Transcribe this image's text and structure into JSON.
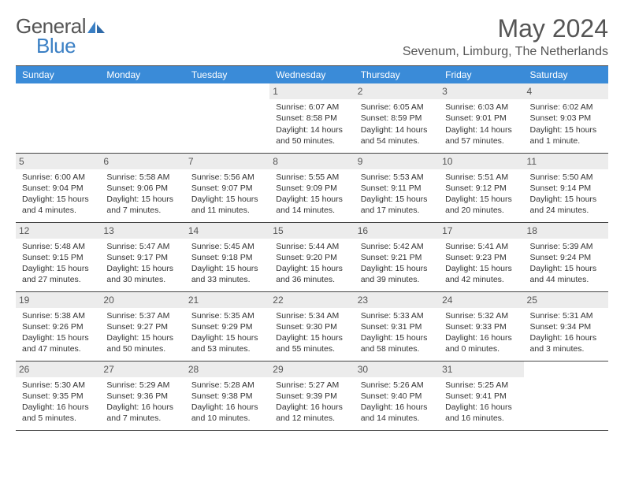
{
  "logo": {
    "part1": "General",
    "part2": "Blue"
  },
  "title": "May 2024",
  "location": "Sevenum, Limburg, The Netherlands",
  "colors": {
    "header_bg": "#3a8bd8",
    "accent": "#3a7fc4",
    "text": "#333333",
    "daybg": "#ececec"
  },
  "weekdays": [
    "Sunday",
    "Monday",
    "Tuesday",
    "Wednesday",
    "Thursday",
    "Friday",
    "Saturday"
  ],
  "weeks": [
    [
      null,
      null,
      null,
      {
        "n": "1",
        "sr": "Sunrise: 6:07 AM",
        "ss": "Sunset: 8:58 PM",
        "dl1": "Daylight: 14 hours",
        "dl2": "and 50 minutes."
      },
      {
        "n": "2",
        "sr": "Sunrise: 6:05 AM",
        "ss": "Sunset: 8:59 PM",
        "dl1": "Daylight: 14 hours",
        "dl2": "and 54 minutes."
      },
      {
        "n": "3",
        "sr": "Sunrise: 6:03 AM",
        "ss": "Sunset: 9:01 PM",
        "dl1": "Daylight: 14 hours",
        "dl2": "and 57 minutes."
      },
      {
        "n": "4",
        "sr": "Sunrise: 6:02 AM",
        "ss": "Sunset: 9:03 PM",
        "dl1": "Daylight: 15 hours",
        "dl2": "and 1 minute."
      }
    ],
    [
      {
        "n": "5",
        "sr": "Sunrise: 6:00 AM",
        "ss": "Sunset: 9:04 PM",
        "dl1": "Daylight: 15 hours",
        "dl2": "and 4 minutes."
      },
      {
        "n": "6",
        "sr": "Sunrise: 5:58 AM",
        "ss": "Sunset: 9:06 PM",
        "dl1": "Daylight: 15 hours",
        "dl2": "and 7 minutes."
      },
      {
        "n": "7",
        "sr": "Sunrise: 5:56 AM",
        "ss": "Sunset: 9:07 PM",
        "dl1": "Daylight: 15 hours",
        "dl2": "and 11 minutes."
      },
      {
        "n": "8",
        "sr": "Sunrise: 5:55 AM",
        "ss": "Sunset: 9:09 PM",
        "dl1": "Daylight: 15 hours",
        "dl2": "and 14 minutes."
      },
      {
        "n": "9",
        "sr": "Sunrise: 5:53 AM",
        "ss": "Sunset: 9:11 PM",
        "dl1": "Daylight: 15 hours",
        "dl2": "and 17 minutes."
      },
      {
        "n": "10",
        "sr": "Sunrise: 5:51 AM",
        "ss": "Sunset: 9:12 PM",
        "dl1": "Daylight: 15 hours",
        "dl2": "and 20 minutes."
      },
      {
        "n": "11",
        "sr": "Sunrise: 5:50 AM",
        "ss": "Sunset: 9:14 PM",
        "dl1": "Daylight: 15 hours",
        "dl2": "and 24 minutes."
      }
    ],
    [
      {
        "n": "12",
        "sr": "Sunrise: 5:48 AM",
        "ss": "Sunset: 9:15 PM",
        "dl1": "Daylight: 15 hours",
        "dl2": "and 27 minutes."
      },
      {
        "n": "13",
        "sr": "Sunrise: 5:47 AM",
        "ss": "Sunset: 9:17 PM",
        "dl1": "Daylight: 15 hours",
        "dl2": "and 30 minutes."
      },
      {
        "n": "14",
        "sr": "Sunrise: 5:45 AM",
        "ss": "Sunset: 9:18 PM",
        "dl1": "Daylight: 15 hours",
        "dl2": "and 33 minutes."
      },
      {
        "n": "15",
        "sr": "Sunrise: 5:44 AM",
        "ss": "Sunset: 9:20 PM",
        "dl1": "Daylight: 15 hours",
        "dl2": "and 36 minutes."
      },
      {
        "n": "16",
        "sr": "Sunrise: 5:42 AM",
        "ss": "Sunset: 9:21 PM",
        "dl1": "Daylight: 15 hours",
        "dl2": "and 39 minutes."
      },
      {
        "n": "17",
        "sr": "Sunrise: 5:41 AM",
        "ss": "Sunset: 9:23 PM",
        "dl1": "Daylight: 15 hours",
        "dl2": "and 42 minutes."
      },
      {
        "n": "18",
        "sr": "Sunrise: 5:39 AM",
        "ss": "Sunset: 9:24 PM",
        "dl1": "Daylight: 15 hours",
        "dl2": "and 44 minutes."
      }
    ],
    [
      {
        "n": "19",
        "sr": "Sunrise: 5:38 AM",
        "ss": "Sunset: 9:26 PM",
        "dl1": "Daylight: 15 hours",
        "dl2": "and 47 minutes."
      },
      {
        "n": "20",
        "sr": "Sunrise: 5:37 AM",
        "ss": "Sunset: 9:27 PM",
        "dl1": "Daylight: 15 hours",
        "dl2": "and 50 minutes."
      },
      {
        "n": "21",
        "sr": "Sunrise: 5:35 AM",
        "ss": "Sunset: 9:29 PM",
        "dl1": "Daylight: 15 hours",
        "dl2": "and 53 minutes."
      },
      {
        "n": "22",
        "sr": "Sunrise: 5:34 AM",
        "ss": "Sunset: 9:30 PM",
        "dl1": "Daylight: 15 hours",
        "dl2": "and 55 minutes."
      },
      {
        "n": "23",
        "sr": "Sunrise: 5:33 AM",
        "ss": "Sunset: 9:31 PM",
        "dl1": "Daylight: 15 hours",
        "dl2": "and 58 minutes."
      },
      {
        "n": "24",
        "sr": "Sunrise: 5:32 AM",
        "ss": "Sunset: 9:33 PM",
        "dl1": "Daylight: 16 hours",
        "dl2": "and 0 minutes."
      },
      {
        "n": "25",
        "sr": "Sunrise: 5:31 AM",
        "ss": "Sunset: 9:34 PM",
        "dl1": "Daylight: 16 hours",
        "dl2": "and 3 minutes."
      }
    ],
    [
      {
        "n": "26",
        "sr": "Sunrise: 5:30 AM",
        "ss": "Sunset: 9:35 PM",
        "dl1": "Daylight: 16 hours",
        "dl2": "and 5 minutes."
      },
      {
        "n": "27",
        "sr": "Sunrise: 5:29 AM",
        "ss": "Sunset: 9:36 PM",
        "dl1": "Daylight: 16 hours",
        "dl2": "and 7 minutes."
      },
      {
        "n": "28",
        "sr": "Sunrise: 5:28 AM",
        "ss": "Sunset: 9:38 PM",
        "dl1": "Daylight: 16 hours",
        "dl2": "and 10 minutes."
      },
      {
        "n": "29",
        "sr": "Sunrise: 5:27 AM",
        "ss": "Sunset: 9:39 PM",
        "dl1": "Daylight: 16 hours",
        "dl2": "and 12 minutes."
      },
      {
        "n": "30",
        "sr": "Sunrise: 5:26 AM",
        "ss": "Sunset: 9:40 PM",
        "dl1": "Daylight: 16 hours",
        "dl2": "and 14 minutes."
      },
      {
        "n": "31",
        "sr": "Sunrise: 5:25 AM",
        "ss": "Sunset: 9:41 PM",
        "dl1": "Daylight: 16 hours",
        "dl2": "and 16 minutes."
      },
      null
    ]
  ]
}
